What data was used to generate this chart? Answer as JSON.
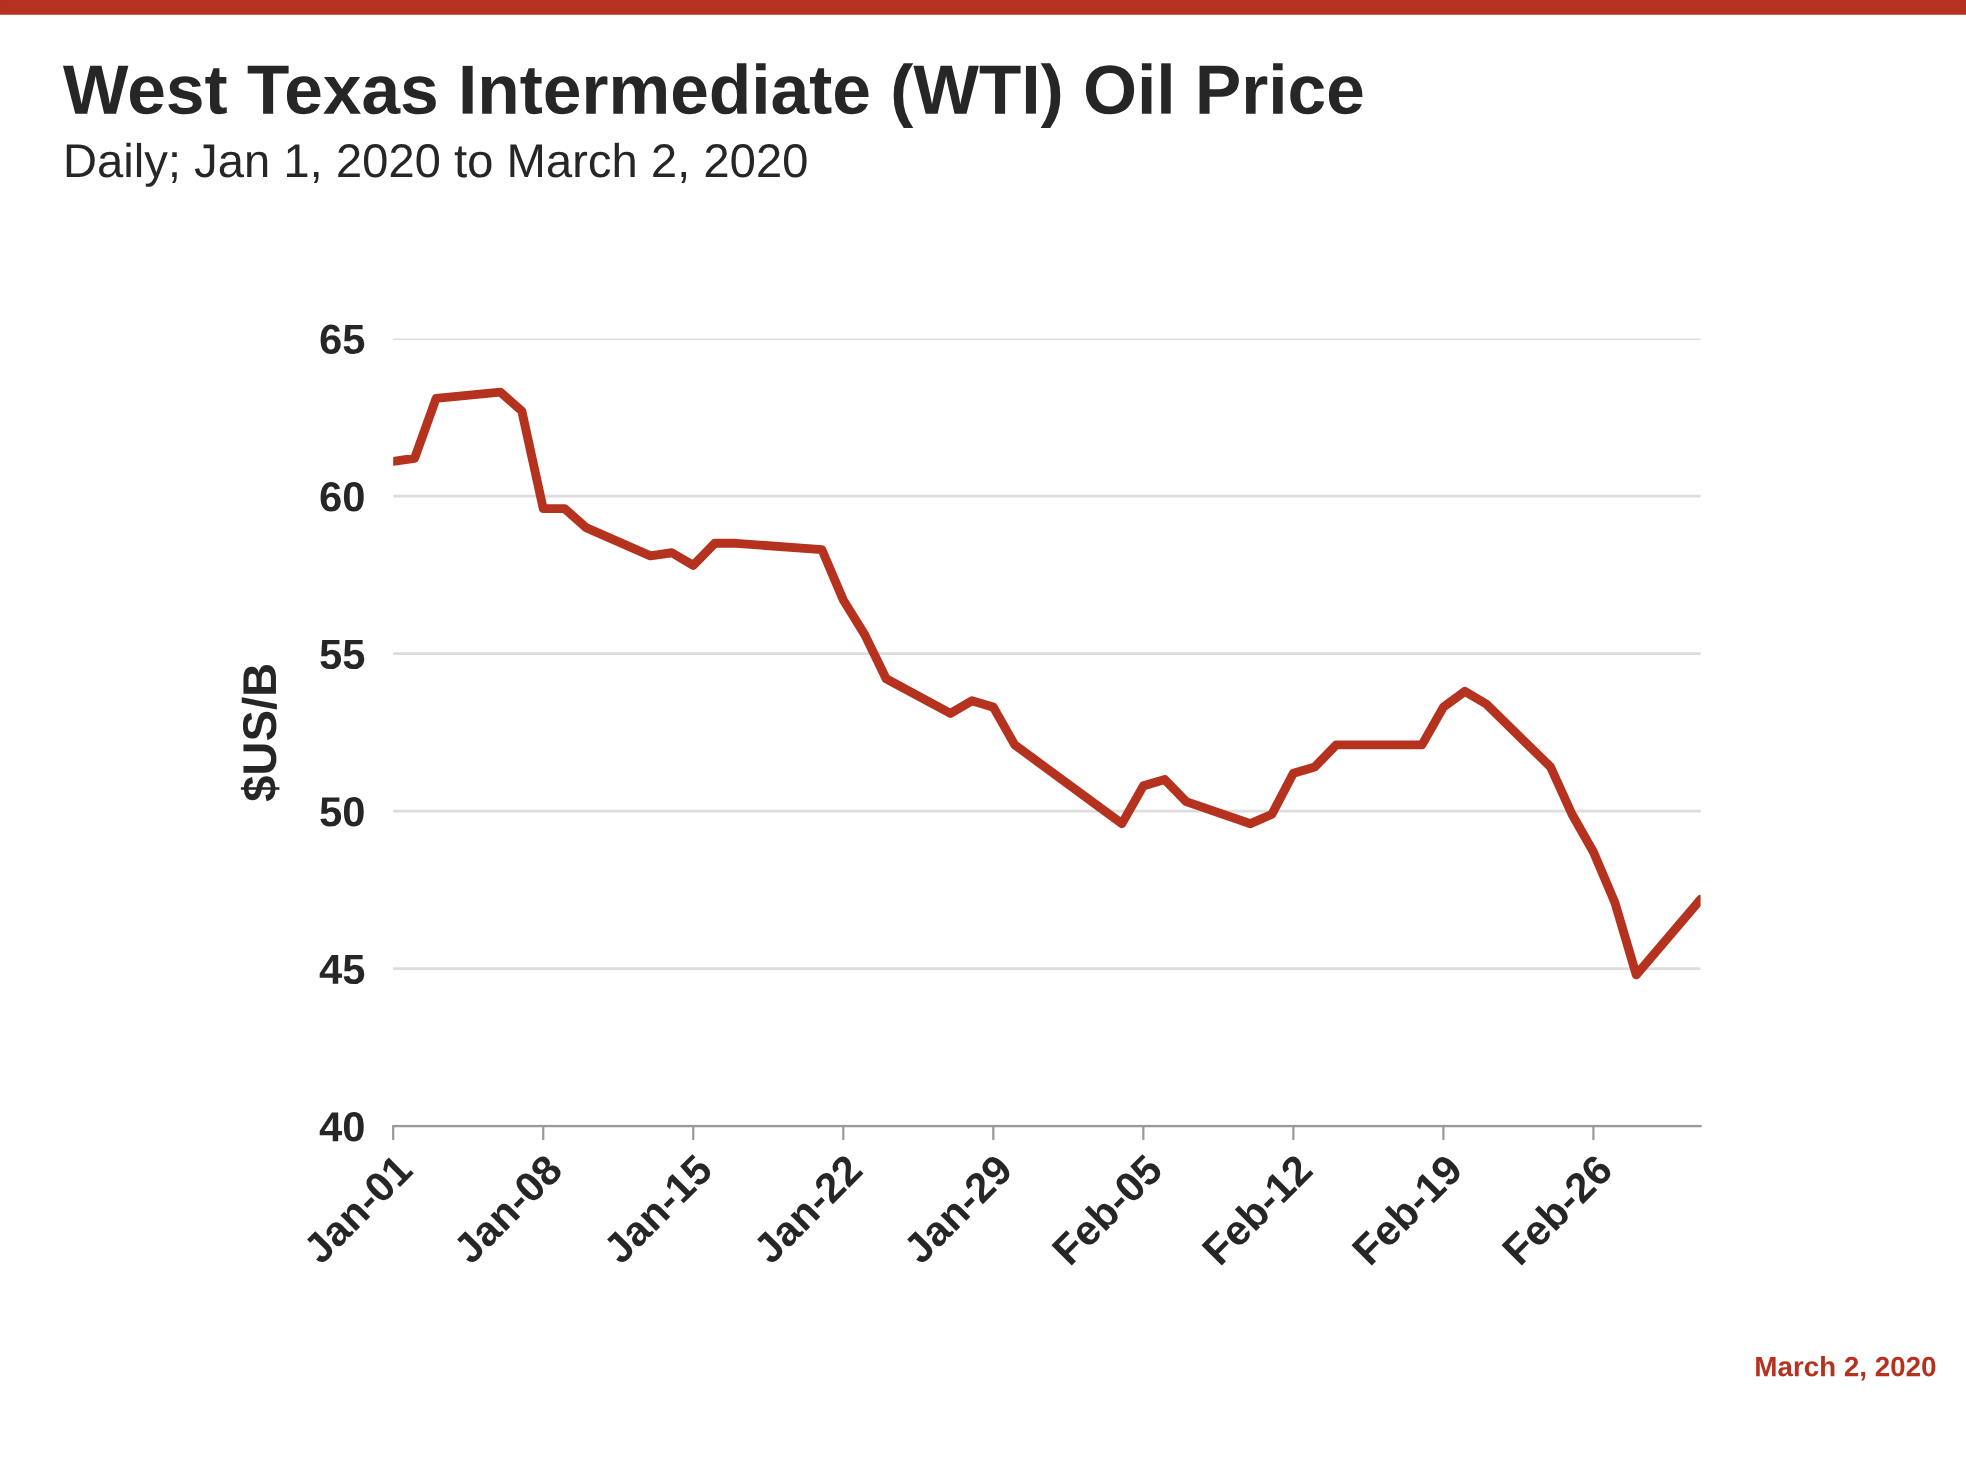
{
  "chart_data": {
    "type": "line",
    "title": "West Texas Intermediate (WTI) Oil Price",
    "subtitle": "Daily; Jan 1, 2020 to March 2, 2020",
    "ylabel": "$US/B",
    "x": [
      "2020-01-01",
      "2020-01-02",
      "2020-01-03",
      "2020-01-06",
      "2020-01-07",
      "2020-01-08",
      "2020-01-09",
      "2020-01-10",
      "2020-01-13",
      "2020-01-14",
      "2020-01-15",
      "2020-01-16",
      "2020-01-17",
      "2020-01-21",
      "2020-01-22",
      "2020-01-23",
      "2020-01-24",
      "2020-01-27",
      "2020-01-28",
      "2020-01-29",
      "2020-01-30",
      "2020-01-31",
      "2020-02-03",
      "2020-02-04",
      "2020-02-05",
      "2020-02-06",
      "2020-02-07",
      "2020-02-10",
      "2020-02-11",
      "2020-02-12",
      "2020-02-13",
      "2020-02-14",
      "2020-02-18",
      "2020-02-19",
      "2020-02-20",
      "2020-02-21",
      "2020-02-24",
      "2020-02-25",
      "2020-02-26",
      "2020-02-27",
      "2020-02-28",
      "2020-03-02"
    ],
    "series": [
      {
        "color": "#b5321f",
        "values": [
          61.1,
          61.2,
          63.1,
          63.3,
          62.7,
          59.6,
          59.6,
          59.0,
          58.1,
          58.2,
          57.8,
          58.5,
          58.5,
          58.3,
          56.7,
          55.6,
          54.2,
          53.1,
          53.5,
          53.3,
          52.1,
          51.6,
          50.1,
          49.6,
          50.8,
          51.0,
          50.3,
          49.6,
          49.9,
          51.2,
          51.4,
          52.1,
          52.1,
          53.3,
          53.8,
          53.4,
          51.4,
          49.9,
          48.7,
          47.1,
          44.8,
          47.2
        ]
      }
    ],
    "xlim": [
      "2020-01-01",
      "2020-03-02"
    ],
    "xticks": [
      {
        "value": "2020-01-01",
        "label": "Jan-01"
      },
      {
        "value": "2020-01-08",
        "label": "Jan-08"
      },
      {
        "value": "2020-01-15",
        "label": "Jan-15"
      },
      {
        "value": "2020-01-22",
        "label": "Jan-22"
      },
      {
        "value": "2020-01-29",
        "label": "Jan-29"
      },
      {
        "value": "2020-02-05",
        "label": "Feb-05"
      },
      {
        "value": "2020-02-12",
        "label": "Feb-12"
      },
      {
        "value": "2020-02-19",
        "label": "Feb-19"
      },
      {
        "value": "2020-02-26",
        "label": "Feb-26"
      }
    ],
    "ylim": [
      40,
      65
    ],
    "yticks": [
      40,
      45,
      50,
      55,
      60,
      65
    ],
    "grid": "y",
    "line_style": "solid",
    "marker": "none",
    "annotations": [
      "March 2, 2020"
    ]
  }
}
